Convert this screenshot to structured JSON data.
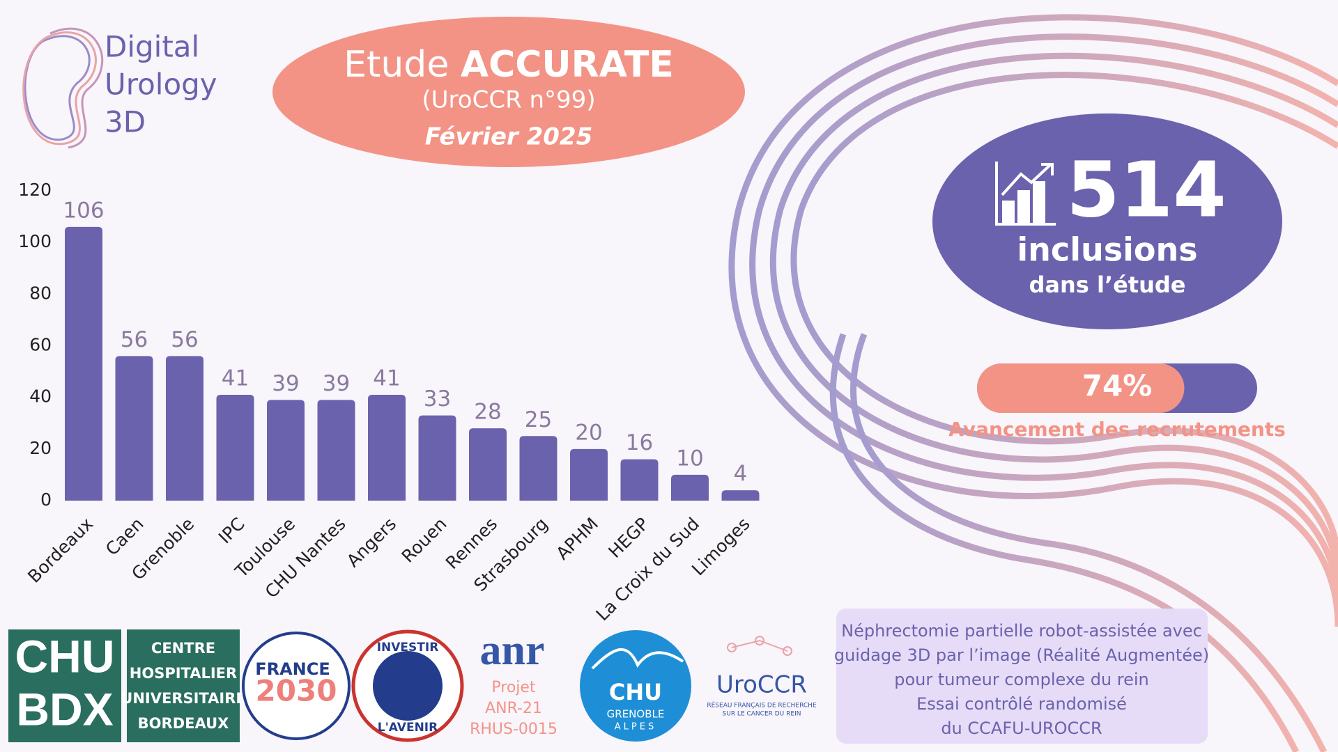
{
  "brand": {
    "lines": [
      "Digital",
      "Urology",
      "3D"
    ]
  },
  "header": {
    "title_light": "Etude",
    "title_bold": "ACCURATE",
    "subtitle": "(UroCCR n°99)",
    "date": "Février 2025"
  },
  "chart_data": {
    "type": "bar",
    "categories": [
      "Bordeaux",
      "Caen",
      "Grenoble",
      "IPC",
      "Toulouse",
      "CHU Nantes",
      "Angers",
      "Rouen",
      "Rennes",
      "Strasbourg",
      "APHM",
      "HEGP",
      "La Croix du Sud",
      "Limoges"
    ],
    "values": [
      106,
      56,
      56,
      41,
      39,
      39,
      41,
      33,
      28,
      25,
      20,
      16,
      10,
      4
    ],
    "color": "#6b62ad",
    "ylim": [
      0,
      120
    ],
    "yticks": [
      0,
      20,
      40,
      60,
      80,
      100,
      120
    ],
    "grid": false
  },
  "kpi": {
    "value": "514",
    "line1": "inclusions",
    "line2": "dans l’étude"
  },
  "progress": {
    "value": 74,
    "label": "74%",
    "caption": "Avancement des recrutements"
  },
  "logos": {
    "chu_bdx": [
      "CHU",
      "BDX"
    ],
    "chu_bdx_name": [
      "CENTRE",
      "HOSPITALIER",
      "UNIVERSITAIRE",
      "BORDEAUX"
    ],
    "france2030": [
      "FRANCE",
      "2030"
    ],
    "investir": [
      "INVESTIR",
      "L'AVENIR"
    ],
    "anr": "anr",
    "anr_project": [
      "Projet",
      "ANR-21",
      "RHUS-0015"
    ],
    "chu_grenoble": [
      "CHU",
      "GRENOBLE",
      "ALPES"
    ],
    "uroccr": "UroCCR",
    "uroccr_sub": [
      "RÉSEAU FRANÇAIS DE RECHERCHE",
      "SUR LE CANCER DU REIN"
    ]
  },
  "footer_note": {
    "lines": [
      "Néphrectomie partielle robot-assistée avec",
      "guidage 3D par l’image (Réalité Augmentée)",
      "pour tumeur complexe du rein",
      "Essai contrôlé randomisé",
      "du CCAFU-UROCCR"
    ]
  }
}
